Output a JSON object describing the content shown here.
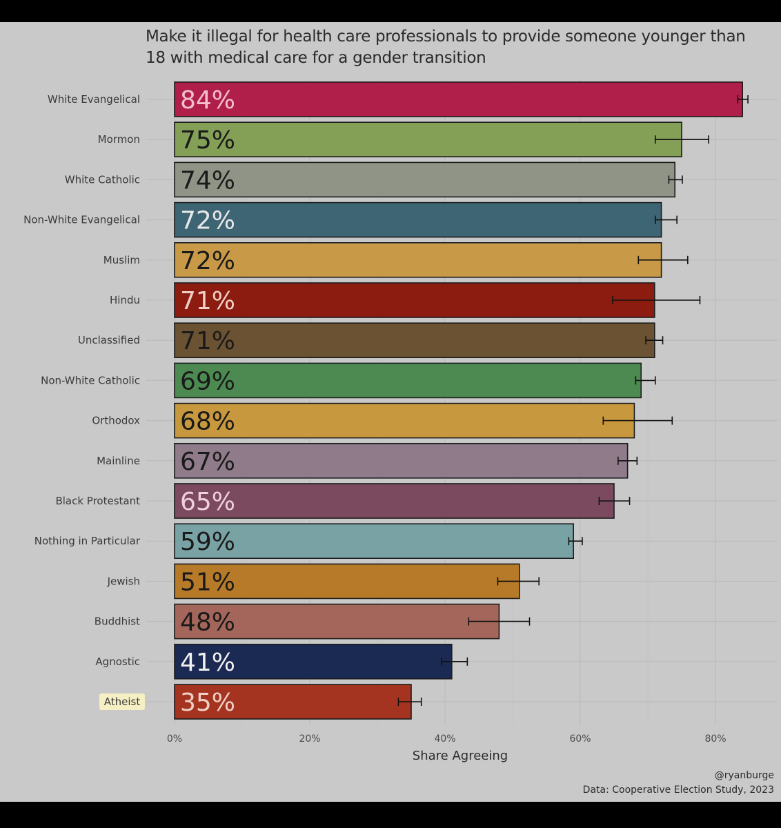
{
  "chart_data": {
    "type": "bar",
    "orientation": "horizontal",
    "title": "Make it illegal for health care professionals to provide someone younger than 18 with medical care for a gender transition",
    "xlabel": "Share Agreeing",
    "ylabel": "",
    "xlim": [
      0,
      0.88
    ],
    "x_ticks": [
      0,
      0.2,
      0.4,
      0.6,
      0.8
    ],
    "x_tick_labels": [
      "0%",
      "20%",
      "40%",
      "60%",
      "80%"
    ],
    "grid": true,
    "highlighted_category": "Atheist",
    "highlight_color": "#f6efc4",
    "categories": [
      "White Evangelical",
      "Mormon",
      "White Catholic",
      "Non-White Evangelical",
      "Muslim",
      "Hindu",
      "Unclassified",
      "Non-White Catholic",
      "Orthodox",
      "Mainline",
      "Black Protestant",
      "Nothing in Particular",
      "Jewish",
      "Buddhist",
      "Agnostic",
      "Atheist"
    ],
    "values": [
      0.84,
      0.75,
      0.74,
      0.72,
      0.72,
      0.71,
      0.71,
      0.69,
      0.68,
      0.67,
      0.65,
      0.59,
      0.51,
      0.48,
      0.41,
      0.35
    ],
    "labels": [
      "84%",
      "75%",
      "74%",
      "72%",
      "72%",
      "71%",
      "71%",
      "69%",
      "68%",
      "67%",
      "65%",
      "59%",
      "51%",
      "48%",
      "41%",
      "35%"
    ],
    "ci_low": [
      0.833,
      0.711,
      0.731,
      0.711,
      0.686,
      0.648,
      0.697,
      0.682,
      0.634,
      0.656,
      0.628,
      0.583,
      0.478,
      0.435,
      0.395,
      0.331
    ],
    "ci_high": [
      0.848,
      0.79,
      0.751,
      0.743,
      0.759,
      0.777,
      0.722,
      0.711,
      0.736,
      0.684,
      0.673,
      0.603,
      0.539,
      0.525,
      0.433,
      0.365
    ],
    "colors": [
      "#b01e4a",
      "#84a057",
      "#8f9487",
      "#3e6573",
      "#c89a48",
      "#8c1c10",
      "#6a5232",
      "#4d8a52",
      "#c8983e",
      "#907b8b",
      "#7c4a5e",
      "#79a2a4",
      "#b67a28",
      "#a4665a",
      "#1b2a52",
      "#a43420"
    ],
    "label_colors": [
      "#f2c0d0",
      "#1a1a1a",
      "#1a1a1a",
      "#e8e8e8",
      "#1a1a1a",
      "#f0d0c8",
      "#1a1a1a",
      "#1a1a1a",
      "#1a1a1a",
      "#1a1a1a",
      "#f0d0dc",
      "#1a1a1a",
      "#1a1a1a",
      "#1a1a1a",
      "#f0f0f0",
      "#f0d0c8"
    ]
  },
  "credit": {
    "handle": "@ryanburge",
    "source": "Data: Cooperative Election Study, 2023"
  }
}
